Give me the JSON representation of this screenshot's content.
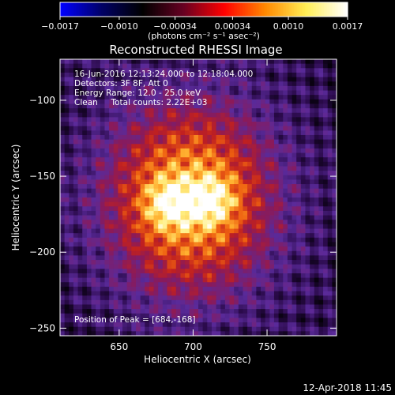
{
  "chart_data": {
    "type": "heatmap",
    "title": "Reconstructed RHESSI Image",
    "xlabel": "Heliocentric X (arcsec)",
    "ylabel": "Heliocentric Y (arcsec)",
    "xlim": [
      610,
      797
    ],
    "ylim": [
      -255,
      -73
    ],
    "xticks": [
      {
        "value": 650,
        "label": "650"
      },
      {
        "value": 700,
        "label": "700"
      },
      {
        "value": 750,
        "label": "750"
      }
    ],
    "yticks": [
      {
        "value": -100,
        "label": "−100"
      },
      {
        "value": -150,
        "label": "−150"
      },
      {
        "value": -200,
        "label": "−200"
      },
      {
        "value": -250,
        "label": "−250"
      }
    ],
    "colorbar": {
      "min": -0.0017,
      "max": 0.0017,
      "ticks": [
        {
          "value": -0.0017,
          "label": "−0.0017"
        },
        {
          "value": -0.001,
          "label": "−0.0010"
        },
        {
          "value": -0.00034,
          "label": "−0.00034"
        },
        {
          "value": 0.00034,
          "label": "0.00034"
        },
        {
          "value": 0.001,
          "label": "0.0010"
        },
        {
          "value": 0.0017,
          "label": "0.0017"
        }
      ],
      "unit_label": "(photons cm⁻² s⁻¹ asec⁻²)",
      "colormap": [
        "#0000ff",
        "#000066",
        "#000000",
        "#660022",
        "#ff0000",
        "#ff8800",
        "#ffee55",
        "#ffffff"
      ]
    },
    "image_colormap": [
      "#000000",
      "#2a0a4a",
      "#5a2a9a",
      "#8a1a5a",
      "#c02020",
      "#ee6010",
      "#ffb030",
      "#ffee80",
      "#ffffff"
    ],
    "annotations": [
      "16-Jun-2016 12:13:24.000 to 12:18:04.000",
      "Detectors: 3F 8F, Att 0",
      "Energy Range: 12.0 - 25.0 keV",
      "Clean     Total counts: 2.22E+03"
    ],
    "peak_label": "Position of Peak = [684,-168]",
    "peak_position": [
      684,
      -168
    ]
  },
  "footer": {
    "timestamp": "12-Apr-2018 11:45"
  }
}
